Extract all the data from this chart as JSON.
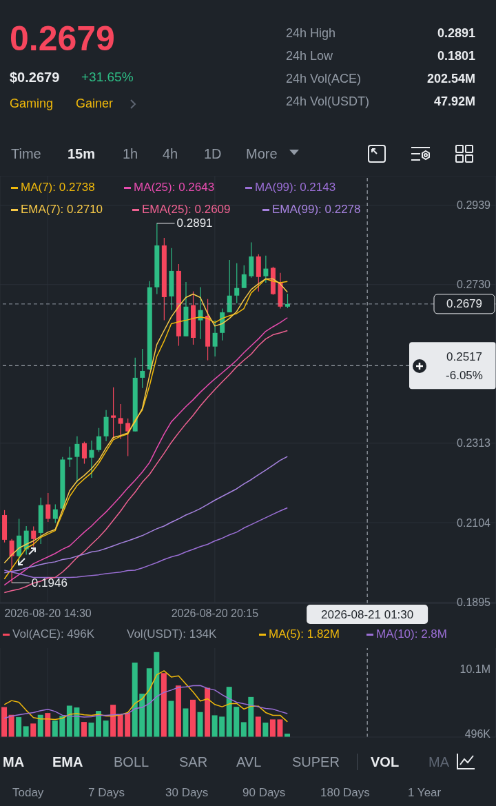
{
  "chart_data": [
    {
      "type": "candlestick",
      "x": [
        "2026-08-20T13:00",
        "2026-08-20T13:15",
        "2026-08-20T13:30",
        "2026-08-20T13:45",
        "2026-08-20T14:00",
        "2026-08-20T14:15",
        "2026-08-20T14:30",
        "2026-08-20T14:45",
        "2026-08-20T15:00",
        "2026-08-20T15:15",
        "2026-08-20T15:30",
        "2026-08-20T15:45",
        "2026-08-20T16:00",
        "2026-08-20T16:15",
        "2026-08-20T16:30",
        "2026-08-20T16:45",
        "2026-08-20T17:00",
        "2026-08-20T17:15",
        "2026-08-20T17:30",
        "2026-08-20T17:45",
        "2026-08-20T18:00",
        "2026-08-20T18:15",
        "2026-08-20T18:30",
        "2026-08-20T18:45",
        "2026-08-20T19:00",
        "2026-08-20T19:15",
        "2026-08-20T19:30",
        "2026-08-20T19:45",
        "2026-08-20T20:00",
        "2026-08-20T20:15",
        "2026-08-20T20:30",
        "2026-08-20T20:45",
        "2026-08-20T21:00",
        "2026-08-20T21:15",
        "2026-08-20T21:30",
        "2026-08-20T21:45",
        "2026-08-20T22:00",
        "2026-08-20T22:15",
        "2026-08-20T22:30",
        "2026-08-20T22:45"
      ],
      "ohlc": [
        [
          0.2124,
          0.2137,
          0.2052,
          0.2059
        ],
        [
          0.2057,
          0.2061,
          0.1946,
          0.2016
        ],
        [
          0.2016,
          0.2114,
          0.199,
          0.207
        ],
        [
          0.2034,
          0.2095,
          0.202,
          0.2083
        ],
        [
          0.2083,
          0.2094,
          0.2041,
          0.2061
        ],
        [
          0.2077,
          0.217,
          0.2048,
          0.215
        ],
        [
          0.2152,
          0.2182,
          0.2106,
          0.2114
        ],
        [
          0.2114,
          0.2152,
          0.2103,
          0.2139
        ],
        [
          0.2141,
          0.2277,
          0.2139,
          0.227
        ],
        [
          0.227,
          0.2304,
          0.2251,
          0.2275
        ],
        [
          0.2277,
          0.2331,
          0.221,
          0.2311
        ],
        [
          0.2313,
          0.2317,
          0.2259,
          0.2273
        ],
        [
          0.2275,
          0.232,
          0.2222,
          0.2295
        ],
        [
          0.2295,
          0.2353,
          0.229,
          0.2331
        ],
        [
          0.2331,
          0.24,
          0.2318,
          0.2382
        ],
        [
          0.2386,
          0.246,
          0.2324,
          0.238
        ],
        [
          0.2379,
          0.2416,
          0.2324,
          0.2364
        ],
        [
          0.2366,
          0.2378,
          0.2279,
          0.2344
        ],
        [
          0.2344,
          0.2538,
          0.2344,
          0.2485
        ],
        [
          0.2485,
          0.2561,
          0.2458,
          0.2503
        ],
        [
          0.2507,
          0.2739,
          0.2505,
          0.2723
        ],
        [
          0.2723,
          0.2891,
          0.2705,
          0.2833
        ],
        [
          0.2833,
          0.2853,
          0.2636,
          0.2697
        ],
        [
          0.2699,
          0.2826,
          0.2663,
          0.2766
        ],
        [
          0.2766,
          0.2784,
          0.2569,
          0.2594
        ],
        [
          0.2594,
          0.2737,
          0.2594,
          0.2672
        ],
        [
          0.2676,
          0.2712,
          0.2572,
          0.259
        ],
        [
          0.2636,
          0.2723,
          0.2587,
          0.2663
        ],
        [
          0.2648,
          0.2692,
          0.2531,
          0.2567
        ],
        [
          0.2567,
          0.2636,
          0.2541,
          0.2603
        ],
        [
          0.2603,
          0.2667,
          0.2583,
          0.2657
        ],
        [
          0.2657,
          0.2795,
          0.2657,
          0.2701
        ],
        [
          0.2701,
          0.2786,
          0.2681,
          0.2721
        ],
        [
          0.2721,
          0.2781,
          0.2721,
          0.2757
        ],
        [
          0.2752,
          0.2841,
          0.2748,
          0.2804
        ],
        [
          0.2804,
          0.281,
          0.2712,
          0.275
        ],
        [
          0.2752,
          0.2806,
          0.2735,
          0.2772
        ],
        [
          0.2774,
          0.2777,
          0.2703,
          0.2705
        ],
        [
          0.2735,
          0.2761,
          0.2667,
          0.2672
        ],
        [
          0.2672,
          0.2706,
          0.2668,
          0.2679
        ]
      ],
      "colors": [
        "#f6465d",
        "#f6465d",
        "#2ebd85",
        "#2ebd85",
        "#f6465d",
        "#2ebd85",
        "#f6465d",
        "#2ebd85",
        "#2ebd85",
        "#2ebd85",
        "#2ebd85",
        "#f6465d",
        "#2ebd85",
        "#2ebd85",
        "#2ebd85",
        "#f6465d",
        "#f6465d",
        "#f6465d",
        "#2ebd85",
        "#2ebd85",
        "#2ebd85",
        "#2ebd85",
        "#f6465d",
        "#2ebd85",
        "#f6465d",
        "#2ebd85",
        "#f6465d",
        "#2ebd85",
        "#f6465d",
        "#2ebd85",
        "#2ebd85",
        "#2ebd85",
        "#2ebd85",
        "#2ebd85",
        "#2ebd85",
        "#f6465d",
        "#2ebd85",
        "#f6465d",
        "#f6465d",
        "#2ebd85"
      ],
      "series": [
        {
          "name": "MA(7): 0.2738",
          "type": "line",
          "color": "#f0b90b",
          "values": [
            0.1956,
            0.1983,
            0.201,
            0.2037,
            0.2047,
            0.2065,
            0.2074,
            0.2083,
            0.2128,
            0.2173,
            0.2201,
            0.2219,
            0.2235,
            0.226,
            0.2291,
            0.2322,
            0.2331,
            0.2337,
            0.2373,
            0.24,
            0.2464,
            0.2541,
            0.2581,
            0.2627,
            0.2632,
            0.2636,
            0.2641,
            0.2645,
            0.2641,
            0.263,
            0.2641,
            0.2648,
            0.2654,
            0.2667,
            0.2708,
            0.2726,
            0.2745,
            0.2739,
            0.2735,
            0.2738
          ]
        },
        {
          "name": "MA(25): 0.2643",
          "type": "line",
          "color": "#e84cb0",
          "values": [
            0.194,
            0.1954,
            0.1967,
            0.1981,
            0.1996,
            0.2005,
            0.2014,
            0.2023,
            0.2034,
            0.2043,
            0.2061,
            0.2079,
            0.2095,
            0.2114,
            0.2132,
            0.2152,
            0.2173,
            0.2195,
            0.2215,
            0.2237,
            0.2262,
            0.23,
            0.2337,
            0.2369,
            0.2389,
            0.2409,
            0.2427,
            0.2447,
            0.2465,
            0.2482,
            0.2498,
            0.2514,
            0.2531,
            0.2551,
            0.2569,
            0.2587,
            0.2607,
            0.2619,
            0.263,
            0.2643
          ]
        },
        {
          "name": "MA(99): 0.2143",
          "type": "line",
          "color": "#9b6fd6",
          "values": [
            0.1979,
            0.1974,
            0.197,
            0.1965,
            0.196,
            0.196,
            0.196,
            0.196,
            0.196,
            0.196,
            0.1961,
            0.1963,
            0.1965,
            0.1967,
            0.197,
            0.1972,
            0.1974,
            0.1978,
            0.1979,
            0.1985,
            0.1992,
            0.1999,
            0.2007,
            0.2014,
            0.2019,
            0.2027,
            0.2034,
            0.2041,
            0.2047,
            0.2056,
            0.2063,
            0.2072,
            0.2079,
            0.209,
            0.2099,
            0.2108,
            0.2117,
            0.2126,
            0.2135,
            0.2143
          ]
        },
        {
          "name": "EMA(7): 0.2710",
          "type": "line",
          "color": "#f7c948",
          "values": [
            0.1998,
            0.2019,
            0.2037,
            0.2047,
            0.2056,
            0.2068,
            0.2079,
            0.2086,
            0.2137,
            0.2188,
            0.2213,
            0.2228,
            0.2246,
            0.2268,
            0.23,
            0.2328,
            0.2333,
            0.234,
            0.2369,
            0.2404,
            0.2491,
            0.2572,
            0.2609,
            0.2645,
            0.2672,
            0.2696,
            0.2705,
            0.2696,
            0.2654,
            0.2621,
            0.2627,
            0.2641,
            0.2659,
            0.269,
            0.2717,
            0.2732,
            0.2745,
            0.2745,
            0.2732,
            0.271
          ]
        },
        {
          "name": "EMA(25): 0.2609",
          "type": "line",
          "color": "#f06292",
          "values": [
            0.192,
            0.1925,
            0.1929,
            0.1936,
            0.1945,
            0.195,
            0.1958,
            0.196,
            0.1974,
            0.1992,
            0.2012,
            0.2028,
            0.2047,
            0.2065,
            0.2086,
            0.211,
            0.2134,
            0.2161,
            0.2184,
            0.221,
            0.2231,
            0.2259,
            0.2286,
            0.2315,
            0.234,
            0.2364,
            0.2386,
            0.2411,
            0.2433,
            0.2454,
            0.2474,
            0.2493,
            0.2514,
            0.2531,
            0.2547,
            0.2569,
            0.2587,
            0.2598,
            0.2603,
            0.2609
          ]
        },
        {
          "name": "EMA(99): 0.2278",
          "type": "line",
          "color": "#a783e0",
          "values": [
            0.1972,
            0.1976,
            0.1979,
            0.1985,
            0.1989,
            0.1994,
            0.1998,
            0.2001,
            0.2007,
            0.201,
            0.2016,
            0.2021,
            0.2027,
            0.203,
            0.2036,
            0.2043,
            0.205,
            0.2056,
            0.2063,
            0.207,
            0.2079,
            0.2088,
            0.2095,
            0.2105,
            0.2114,
            0.2124,
            0.2132,
            0.2141,
            0.2152,
            0.2163,
            0.2173,
            0.2183,
            0.2193,
            0.2206,
            0.2217,
            0.223,
            0.2242,
            0.2255,
            0.2268,
            0.2278
          ]
        }
      ],
      "xlim": [
        "2026-08-20T12:51",
        "2026-08-21T05:56"
      ],
      "xticks": [
        {
          "value": "2026-08-20T14:30",
          "label": "2026-08-20 14:30"
        },
        {
          "value": "2026-08-20T20:15",
          "label": "2026-08-20 20:15"
        }
      ],
      "ylim": [
        0.1892,
        0.3016
      ],
      "yticks": [
        0.2939,
        {
          "value": 0.273,
          "label": "0.2730"
        },
        0.2313,
        0.2104,
        0.1895
      ],
      "grid": true,
      "legend": "top left",
      "ref_lines": [
        {
          "axis": "y",
          "value": 0.2679,
          "label": "0.2679",
          "color": "#929aa5",
          "line_style": "dashed"
        },
        {
          "axis": "y",
          "value": 0.2517,
          "label": "0.2517",
          "color": "#b7bdc6",
          "line_style": "dashed"
        },
        {
          "axis": "x",
          "value": "2026-08-21T01:30",
          "label": "2026-08-21 01:30",
          "color": "#b7bdc6",
          "line_style": "dashed"
        }
      ],
      "annotations": [
        "0.2679",
        "$0.2679",
        "+31.65%",
        "Gaming",
        "Gainer",
        "24h High",
        "0.2891",
        "24h Low",
        "0.1801",
        "24h Vol(ACE)",
        "202.54M",
        "24h Vol(USDT)",
        "47.92M",
        "Time",
        "15m",
        "1h",
        "4h",
        "1D",
        "More",
        "-6.05%",
        {
          "text": "0.2891",
          "x": "2026-08-20T18:15",
          "y": 0.2891
        },
        {
          "text": "0.1946",
          "x": "2026-08-20T13:15",
          "y": 0.1946
        }
      ]
    },
    {
      "type": "bar",
      "x": [
        "2026-08-20T13:00",
        "2026-08-20T13:15",
        "2026-08-20T13:30",
        "2026-08-20T13:45",
        "2026-08-20T14:00",
        "2026-08-20T14:15",
        "2026-08-20T14:30",
        "2026-08-20T14:45",
        "2026-08-20T15:00",
        "2026-08-20T15:15",
        "2026-08-20T15:30",
        "2026-08-20T15:45",
        "2026-08-20T16:00",
        "2026-08-20T16:15",
        "2026-08-20T16:30",
        "2026-08-20T16:45",
        "2026-08-20T17:00",
        "2026-08-20T17:15",
        "2026-08-20T17:30",
        "2026-08-20T17:45",
        "2026-08-20T18:00",
        "2026-08-20T18:15",
        "2026-08-20T18:30",
        "2026-08-20T18:45",
        "2026-08-20T19:00",
        "2026-08-20T19:15",
        "2026-08-20T19:30",
        "2026-08-20T19:45",
        "2026-08-20T20:00",
        "2026-08-20T20:15",
        "2026-08-20T20:30",
        "2026-08-20T20:45",
        "2026-08-20T21:00",
        "2026-08-20T21:15",
        "2026-08-20T21:30",
        "2026-08-20T21:45",
        "2026-08-20T22:00",
        "2026-08-20T22:15",
        "2026-08-20T22:30",
        "2026-08-20T22:45"
      ],
      "series": [
        {
          "name": "Vol(ACE): 496K",
          "colors": [
            "#f6465d",
            "#f6465d",
            "#2ebd85",
            "#2ebd85",
            "#f6465d",
            "#2ebd85",
            "#f6465d",
            "#2ebd85",
            "#2ebd85",
            "#2ebd85",
            "#2ebd85",
            "#f6465d",
            "#2ebd85",
            "#2ebd85",
            "#2ebd85",
            "#f6465d",
            "#f6465d",
            "#f6465d",
            "#2ebd85",
            "#2ebd85",
            "#2ebd85",
            "#2ebd85",
            "#f6465d",
            "#2ebd85",
            "#f6465d",
            "#2ebd85",
            "#f6465d",
            "#2ebd85",
            "#f6465d",
            "#2ebd85",
            "#2ebd85",
            "#2ebd85",
            "#2ebd85",
            "#2ebd85",
            "#2ebd85",
            "#f6465d",
            "#2ebd85",
            "#f6465d",
            "#f6465d",
            "#2ebd85"
          ],
          "values": [
            4460000,
            3300000,
            2960000,
            1600000,
            2010000,
            3300000,
            3570000,
            2450000,
            3130000,
            4660000,
            4390000,
            2240000,
            2140000,
            3880000,
            2450000,
            4790000,
            3300000,
            3570000,
            11050000,
            6430000,
            10200000,
            12600000,
            9490000,
            5370000,
            7650000,
            4250000,
            5540000,
            3710000,
            7310000,
            3230000,
            3030000,
            7450000,
            4490000,
            2210000,
            5950000,
            3030000,
            2140000,
            2620000,
            2620000,
            496000
          ]
        },
        {
          "name": "MA(5): 1.82M",
          "type": "line",
          "color": "#f0b90b",
          "values": [
            4830000,
            5410000,
            5170000,
            3980000,
            2890000,
            2690000,
            2690000,
            2620000,
            2790000,
            3370000,
            3470000,
            3300000,
            3230000,
            3370000,
            3130000,
            3130000,
            3300000,
            3640000,
            5000000,
            5680000,
            7040000,
            9250000,
            9830000,
            8910000,
            9080000,
            7890000,
            6700000,
            5340000,
            5680000,
            4830000,
            4490000,
            4930000,
            5000000,
            4150000,
            4590000,
            4590000,
            3640000,
            3230000,
            3230000,
            2270000
          ]
        },
        {
          "name": "MA(10): 2.8M",
          "type": "line",
          "color": "#9b6fd6",
          "values": [
            2790000,
            3130000,
            3300000,
            3470000,
            3640000,
            3910000,
            4110000,
            3800000,
            3230000,
            3130000,
            3060000,
            2960000,
            3030000,
            3230000,
            3230000,
            3300000,
            3370000,
            3470000,
            4210000,
            4390000,
            5000000,
            6020000,
            6630000,
            6970000,
            7370000,
            7450000,
            7620000,
            7650000,
            7210000,
            6970000,
            6290000,
            5680000,
            5170000,
            4930000,
            4720000,
            4490000,
            4250000,
            4150000,
            3800000,
            3470000
          ]
        }
      ],
      "xlim": [
        "2026-08-20T12:51",
        "2026-08-21T05:56"
      ],
      "xticks": [
        {
          "value": "2026-08-20T14:30",
          "label": null
        },
        {
          "value": "2026-08-20T20:15",
          "label": null
        }
      ],
      "ylim": [
        0,
        13200000
      ],
      "yticks": [
        {
          "value": 10100000,
          "label": "10.1M"
        },
        {
          "value": 496000,
          "label": "496K"
        }
      ],
      "grid": "x",
      "tick_labels": "y",
      "legend": "top left",
      "ref_lines": [
        {
          "axis": "x",
          "value": "2026-08-21T01:30",
          "color": "#b7bdc6",
          "line_style": "dashed"
        }
      ],
      "annotations": [
        "Vol(USDT): 134K",
        "MA",
        "EMA",
        "BOLL",
        "SAR",
        "AVL",
        "SUPER",
        "VOL",
        "MA",
        "Today",
        "7 Days",
        "30 Days",
        "90 Days",
        "180 Days",
        "1 Year"
      ]
    }
  ]
}
